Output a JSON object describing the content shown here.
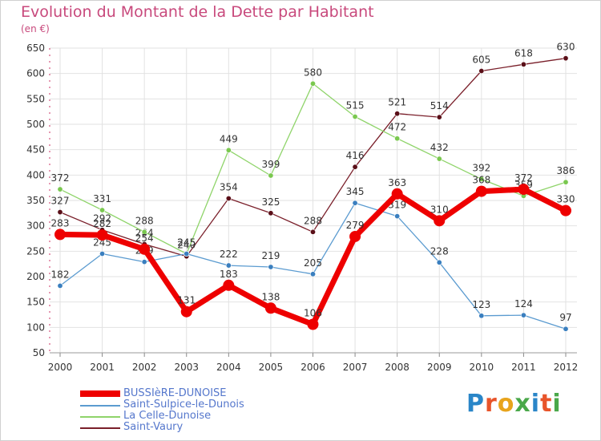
{
  "title": "Evolution du Montant de la Dette par Habitant",
  "subtitle": "(en €)",
  "logo": {
    "text": "Proxiti",
    "colors": [
      "#2a86c8",
      "#e8542a",
      "#e8a41c",
      "#4aa84a",
      "#2a86c8",
      "#e8542a",
      "#4aa84a"
    ]
  },
  "chart_data": {
    "type": "line",
    "title": "Evolution du Montant de la Dette par Habitant",
    "ylabel": "(en €)",
    "xlabel": "",
    "x": [
      "2000",
      "2001",
      "2002",
      "2003",
      "2004",
      "2005",
      "2006",
      "2007",
      "2008",
      "2009",
      "2010",
      "2011",
      "2012"
    ],
    "ylim": [
      50,
      650
    ],
    "yticks": [
      50,
      100,
      150,
      200,
      250,
      300,
      350,
      400,
      450,
      500,
      550,
      600,
      650
    ],
    "grid": true,
    "legend_position": "bottom-left",
    "series": [
      {
        "name": "Saint-Vaury",
        "color": "#7a1f2a",
        "marker": "#5a0f18",
        "width": 1.3,
        "values": [
          327,
          292,
          264,
          240,
          354,
          325,
          288,
          416,
          521,
          514,
          605,
          618,
          630
        ],
        "labels": [
          "327",
          "292",
          "264",
          "240",
          "354",
          "325",
          "288",
          "416",
          "521",
          "514",
          "605",
          "618",
          "630"
        ]
      },
      {
        "name": "La Celle-Dunoise",
        "color": "#8fd46a",
        "marker": "#7ac84f",
        "width": 1.3,
        "values": [
          372,
          331,
          288,
          245,
          449,
          399,
          580,
          515,
          472,
          432,
          392,
          359,
          386
        ],
        "labels": [
          "372",
          "331",
          "288",
          "245",
          "449",
          "399",
          "580",
          "515",
          "472",
          "432",
          "392",
          "359",
          "386"
        ]
      },
      {
        "name": "Saint-Sulpice-le-Dunois",
        "color": "#5b9bd0",
        "marker": "#3a7fbf",
        "width": 1.3,
        "values": [
          182,
          245,
          229,
          245,
          222,
          219,
          205,
          345,
          319,
          228,
          123,
          124,
          97
        ],
        "labels": [
          "182",
          "245",
          "229",
          "245",
          "222",
          "219",
          "205",
          "345",
          "319",
          "228",
          "123",
          "124",
          "97"
        ]
      },
      {
        "name": "BUSSIèRE-DUNOISE",
        "color": "#ee0000",
        "marker": "#ee0000",
        "width": 7,
        "values": [
          283,
          282,
          254,
          131,
          183,
          138,
          106,
          279,
          363,
          310,
          368,
          372,
          330
        ],
        "labels": [
          "283",
          "282",
          "254",
          "131",
          "183",
          "138",
          "106",
          "279",
          "363",
          "310",
          "368",
          "372",
          "330"
        ]
      }
    ],
    "legend_order": [
      "BUSSIèRE-DUNOISE",
      "Saint-Sulpice-le-Dunois",
      "La Celle-Dunoise",
      "Saint-Vaury"
    ]
  }
}
